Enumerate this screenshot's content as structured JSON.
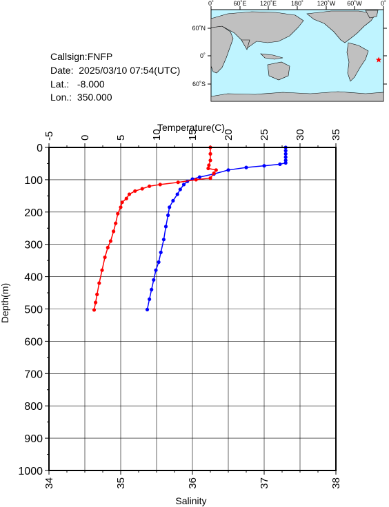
{
  "station": {
    "callsign_label": "Callsign:",
    "callsign": "FNFP",
    "date_label": "Date:",
    "date": "2025/03/10 07:54(UTC)",
    "lat_label": "Lat.:",
    "lat": "-8.000",
    "lon_label": "Lon.:",
    "lon": "350.000"
  },
  "map": {
    "top_labels": [
      "0˚",
      "60˚E",
      "120˚E",
      "180˚",
      "120˚W",
      "60˚W",
      "0˚"
    ],
    "left_labels": [
      "60˚N",
      "0˚",
      "60˚S"
    ],
    "ocean_color": "#bff4ff",
    "land_color": "#c0c0c0",
    "marker_color": "#ff0000",
    "marker_lat": -8.0,
    "marker_lon": 350.0
  },
  "chart_data": {
    "type": "scatter",
    "y_axis": {
      "label": "Depth(m)",
      "range": [
        0,
        1000
      ],
      "ticks": [
        "0",
        "100",
        "200",
        "300",
        "400",
        "500",
        "600",
        "700",
        "800",
        "900",
        "1000"
      ],
      "inverted": true
    },
    "x_top_axis": {
      "label": "Temperature(C)",
      "range": [
        -5,
        35
      ],
      "ticks": [
        "-5",
        "0",
        "5",
        "10",
        "15",
        "20",
        "25",
        "30",
        "35"
      ]
    },
    "x_bottom_axis": {
      "label": "Salinity",
      "range": [
        34,
        38
      ],
      "ticks": [
        "34",
        "35",
        "36",
        "37",
        "38"
      ]
    },
    "grid": true,
    "series": [
      {
        "color": "#0000ff",
        "axis": "temperature",
        "points": [
          [
            28.0,
            0
          ],
          [
            28.0,
            10
          ],
          [
            28.0,
            20
          ],
          [
            28.0,
            30
          ],
          [
            28.0,
            40
          ],
          [
            28.0,
            48
          ],
          [
            27.2,
            52
          ],
          [
            25.0,
            57
          ],
          [
            22.5,
            62
          ],
          [
            20.0,
            70
          ],
          [
            18.0,
            82
          ],
          [
            16.0,
            92
          ],
          [
            15.0,
            98
          ],
          [
            14.3,
            105
          ],
          [
            13.8,
            115
          ],
          [
            13.3,
            130
          ],
          [
            12.9,
            145
          ],
          [
            12.3,
            165
          ],
          [
            11.8,
            185
          ],
          [
            11.6,
            210
          ],
          [
            11.3,
            245
          ],
          [
            11.0,
            285
          ],
          [
            10.6,
            325
          ],
          [
            10.3,
            355
          ],
          [
            9.9,
            380
          ],
          [
            9.6,
            410
          ],
          [
            9.3,
            440
          ],
          [
            9.0,
            470
          ],
          [
            8.7,
            502
          ]
        ]
      },
      {
        "color": "#ff0000",
        "axis": "salinity",
        "points": [
          [
            36.25,
            0
          ],
          [
            36.25,
            20
          ],
          [
            36.25,
            40
          ],
          [
            36.23,
            55
          ],
          [
            36.22,
            65
          ],
          [
            36.33,
            70
          ],
          [
            36.3,
            80
          ],
          [
            36.25,
            95
          ],
          [
            36.05,
            100
          ],
          [
            35.8,
            108
          ],
          [
            35.55,
            115
          ],
          [
            35.4,
            120
          ],
          [
            35.3,
            128
          ],
          [
            35.2,
            135
          ],
          [
            35.12,
            145
          ],
          [
            35.08,
            158
          ],
          [
            35.02,
            170
          ],
          [
            35.0,
            185
          ],
          [
            34.96,
            205
          ],
          [
            34.93,
            235
          ],
          [
            34.9,
            260
          ],
          [
            34.86,
            290
          ],
          [
            34.82,
            310
          ],
          [
            34.78,
            340
          ],
          [
            34.74,
            380
          ],
          [
            34.7,
            420
          ],
          [
            34.67,
            455
          ],
          [
            34.65,
            480
          ],
          [
            34.63,
            503
          ]
        ]
      }
    ]
  }
}
